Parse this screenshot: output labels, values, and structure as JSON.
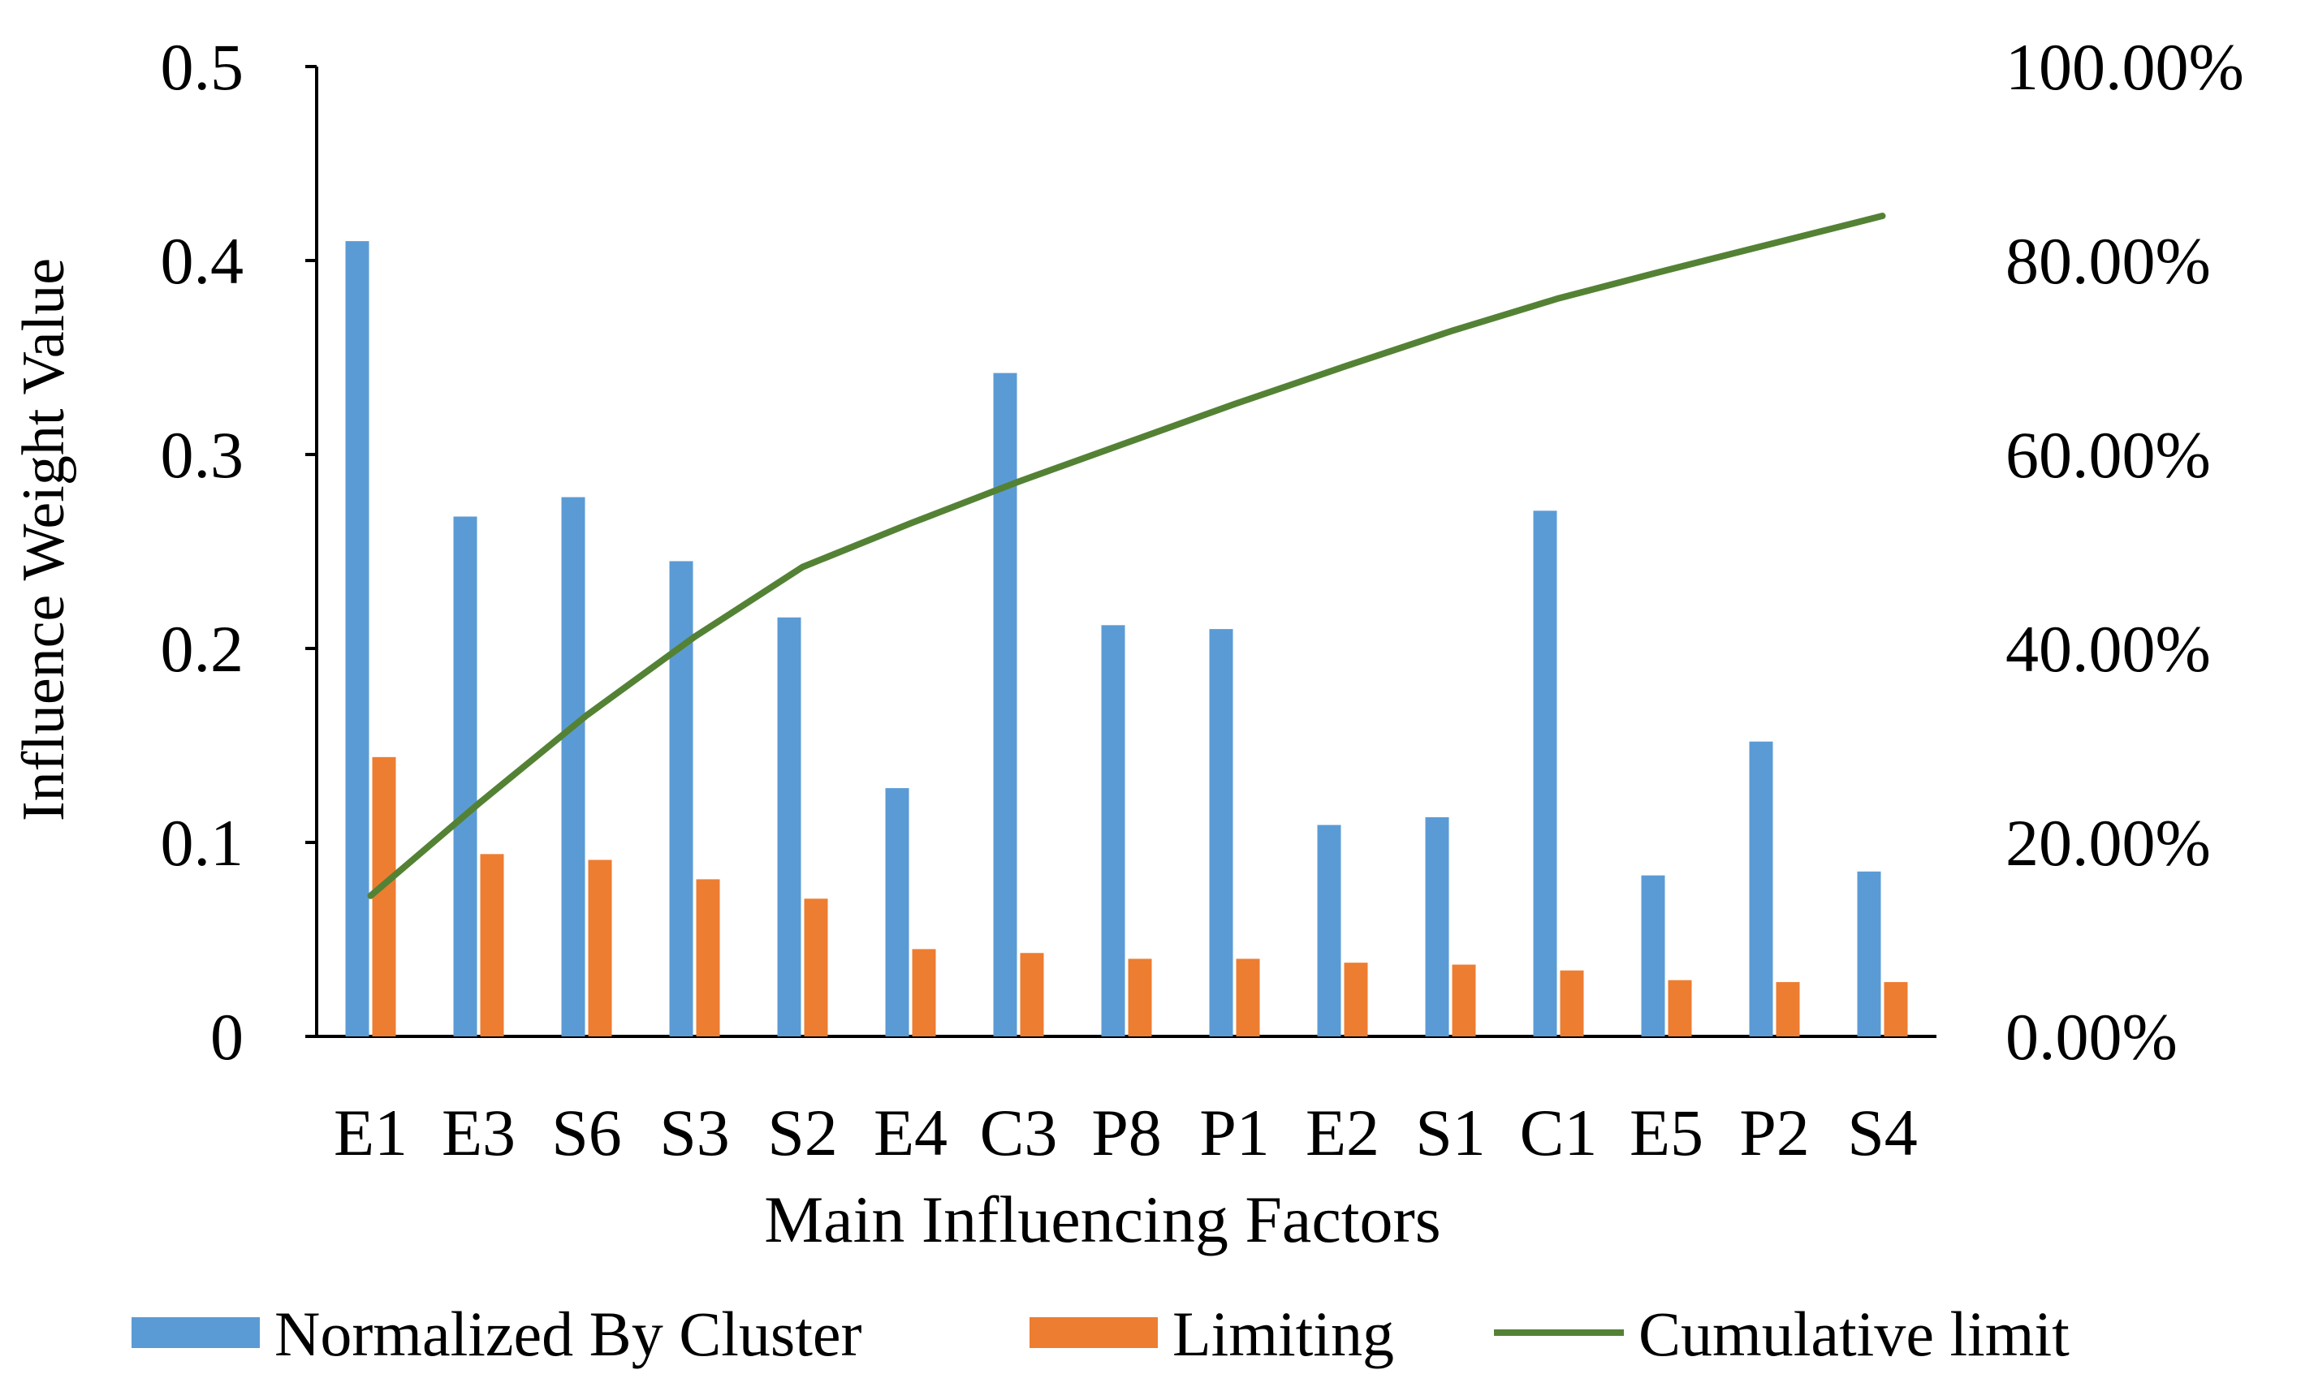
{
  "chart_data": {
    "type": "bar",
    "title": "",
    "xlabel": "Main Influencing Factors",
    "ylabel": "Influence Weight Value",
    "ylim": [
      0,
      0.5
    ],
    "y2lim": [
      0,
      1
    ],
    "y_ticks": [
      "0",
      "0.1",
      "0.2",
      "0.3",
      "0.4",
      "0.5"
    ],
    "y2_ticks": [
      "0.00%",
      "20.00%",
      "40.00%",
      "60.00%",
      "80.00%",
      "100.00%"
    ],
    "categories": [
      "E1",
      "E3",
      "S6",
      "S3",
      "S2",
      "E4",
      "C3",
      "P8",
      "P1",
      "E2",
      "S1",
      "C1",
      "E5",
      "P2",
      "S4"
    ],
    "series": [
      {
        "name": "Normalized By Cluster",
        "type": "bar",
        "axis": "left",
        "color": "#5B9BD5",
        "values": [
          0.41,
          0.268,
          0.278,
          0.245,
          0.216,
          0.128,
          0.342,
          0.212,
          0.21,
          0.109,
          0.113,
          0.271,
          0.083,
          0.152,
          0.085
        ]
      },
      {
        "name": "Limiting",
        "type": "bar",
        "axis": "left",
        "color": "#ED7D31",
        "values": [
          0.144,
          0.094,
          0.091,
          0.081,
          0.071,
          0.045,
          0.043,
          0.04,
          0.04,
          0.038,
          0.037,
          0.034,
          0.029,
          0.028,
          0.028
        ]
      },
      {
        "name": "Cumulative limit",
        "type": "line",
        "axis": "right",
        "color": "#548235",
        "values": [
          0.145,
          0.24,
          0.331,
          0.412,
          0.484,
          0.529,
          0.572,
          0.612,
          0.652,
          0.69,
          0.727,
          0.761,
          0.79,
          0.818,
          0.846
        ]
      }
    ],
    "legend": "bottom"
  }
}
